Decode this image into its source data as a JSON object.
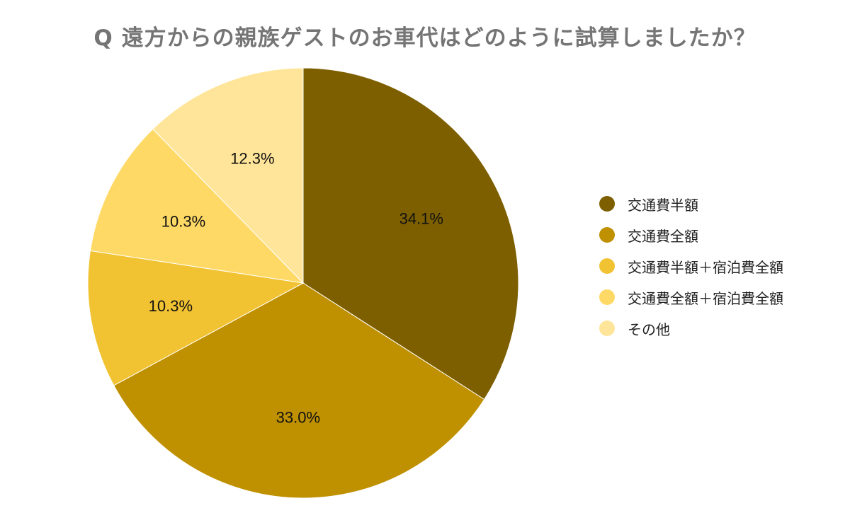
{
  "chart_data": {
    "type": "pie",
    "title": "Q 遠方からの親族ゲストのお車代はどのように試算しましたか？",
    "categories": [
      "交通費半額",
      "交通費全額",
      "交通費半額＋宿泊費全額",
      "交通費全額＋宿泊費全額",
      "その他"
    ],
    "values": [
      34.1,
      33.0,
      10.3,
      10.3,
      12.3
    ],
    "value_labels": [
      "34.1%",
      "33.0%",
      "10.3%",
      "10.3%",
      "12.3%"
    ],
    "colors": [
      "#7d5f00",
      "#bf9000",
      "#f1c232",
      "#ffd966",
      "#ffe599"
    ],
    "legend_position": "right",
    "start_angle": "12 o'clock",
    "direction": "clockwise"
  }
}
